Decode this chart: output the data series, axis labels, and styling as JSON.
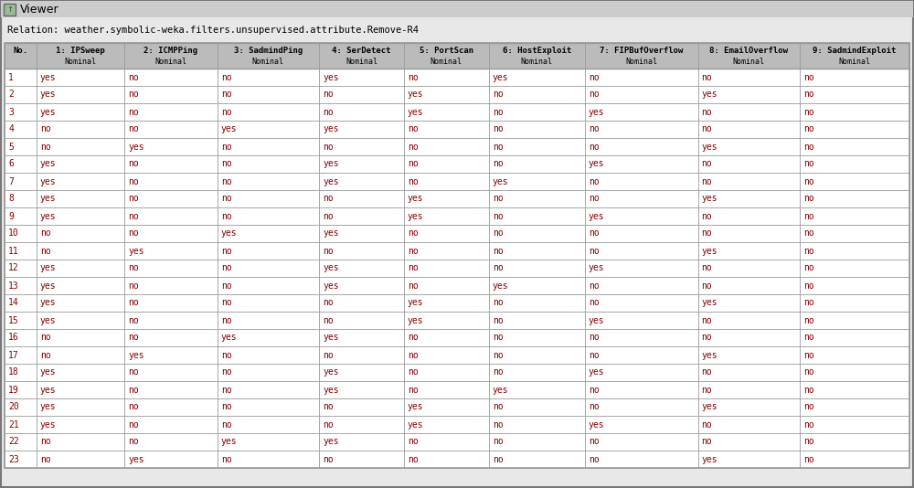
{
  "title_bar": "Viewer",
  "relation_text": "Relation: weather.symbolic-weka.filters.unsupervised.attribute.Remove-R4",
  "col_headers_line1": [
    "No.",
    "1: IPSweep",
    "2: ICMPPing",
    "3: SadmindPing",
    "4: SerDetect",
    "5: PortScan",
    "6: HostExploit",
    "7: FIPBufOverflow",
    "8: EmailOverflow",
    "9: SadmindExploit"
  ],
  "col_headers_line2": [
    "",
    "Nominal",
    "Nominal",
    "Nominal",
    "Nominal",
    "Nominal",
    "Nominal",
    "Nominal",
    "Nominal",
    "Nominal"
  ],
  "rows": [
    [
      1,
      "yes",
      "no",
      "no",
      "yes",
      "no",
      "yes",
      "no",
      "no",
      "no"
    ],
    [
      2,
      "yes",
      "no",
      "no",
      "no",
      "yes",
      "no",
      "no",
      "yes",
      "no"
    ],
    [
      3,
      "yes",
      "no",
      "no",
      "no",
      "yes",
      "no",
      "yes",
      "no",
      "no"
    ],
    [
      4,
      "no",
      "no",
      "yes",
      "yes",
      "no",
      "no",
      "no",
      "no",
      "no"
    ],
    [
      5,
      "no",
      "yes",
      "no",
      "no",
      "no",
      "no",
      "no",
      "yes",
      "no"
    ],
    [
      6,
      "yes",
      "no",
      "no",
      "yes",
      "no",
      "no",
      "yes",
      "no",
      "no"
    ],
    [
      7,
      "yes",
      "no",
      "no",
      "yes",
      "no",
      "yes",
      "no",
      "no",
      "no"
    ],
    [
      8,
      "yes",
      "no",
      "no",
      "no",
      "yes",
      "no",
      "no",
      "yes",
      "no"
    ],
    [
      9,
      "yes",
      "no",
      "no",
      "no",
      "yes",
      "no",
      "yes",
      "no",
      "no"
    ],
    [
      10,
      "no",
      "no",
      "yes",
      "yes",
      "no",
      "no",
      "no",
      "no",
      "no"
    ],
    [
      11,
      "no",
      "yes",
      "no",
      "no",
      "no",
      "no",
      "no",
      "yes",
      "no"
    ],
    [
      12,
      "yes",
      "no",
      "no",
      "yes",
      "no",
      "no",
      "yes",
      "no",
      "no"
    ],
    [
      13,
      "yes",
      "no",
      "no",
      "yes",
      "no",
      "yes",
      "no",
      "no",
      "no"
    ],
    [
      14,
      "yes",
      "no",
      "no",
      "no",
      "yes",
      "no",
      "no",
      "yes",
      "no"
    ],
    [
      15,
      "yes",
      "no",
      "no",
      "no",
      "yes",
      "no",
      "yes",
      "no",
      "no"
    ],
    [
      16,
      "no",
      "no",
      "yes",
      "yes",
      "no",
      "no",
      "no",
      "no",
      "no"
    ],
    [
      17,
      "no",
      "yes",
      "no",
      "no",
      "no",
      "no",
      "no",
      "yes",
      "no"
    ],
    [
      18,
      "yes",
      "no",
      "no",
      "yes",
      "no",
      "no",
      "yes",
      "no",
      "no"
    ],
    [
      19,
      "yes",
      "no",
      "no",
      "yes",
      "no",
      "yes",
      "no",
      "no",
      "no"
    ],
    [
      20,
      "yes",
      "no",
      "no",
      "no",
      "yes",
      "no",
      "no",
      "yes",
      "no"
    ],
    [
      21,
      "yes",
      "no",
      "no",
      "no",
      "yes",
      "no",
      "yes",
      "no",
      "no"
    ],
    [
      22,
      "no",
      "no",
      "yes",
      "yes",
      "no",
      "no",
      "no",
      "no",
      "no"
    ],
    [
      23,
      "no",
      "yes",
      "no",
      "no",
      "no",
      "no",
      "no",
      "yes",
      "no"
    ]
  ],
  "window_bg": "#e8e8e8",
  "title_bar_color": "#cccccc",
  "header_bg_color": "#bbbbbb",
  "row_color": "#ffffff",
  "border_color": "#999999",
  "data_text_color": "#880000",
  "header_text_color": "#000000",
  "title_text_color": "#000000",
  "col_widths_rel": [
    28,
    78,
    82,
    90,
    75,
    75,
    85,
    100,
    90,
    97
  ],
  "figwidth": 10.0,
  "figheight": 5.34,
  "dpi": 100
}
